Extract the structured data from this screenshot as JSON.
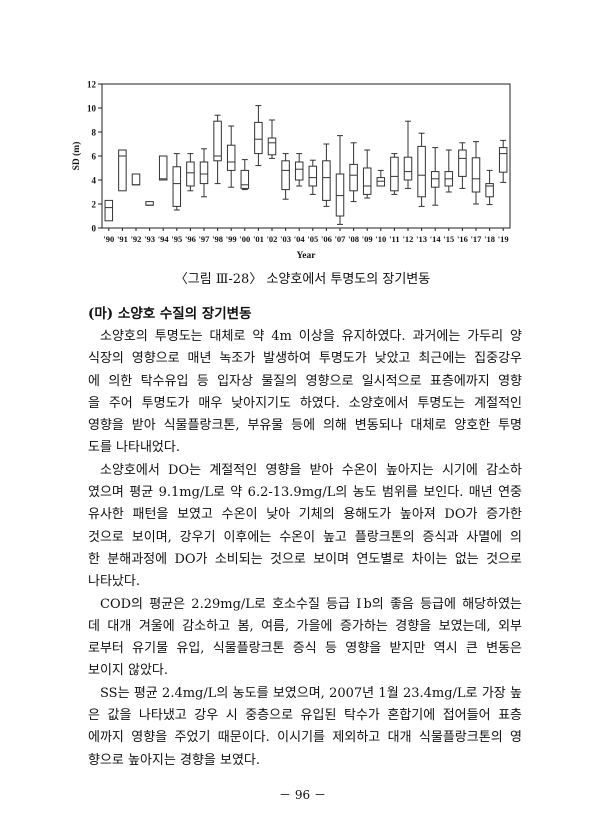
{
  "chart_data": {
    "type": "boxplot",
    "xlabel": "Year",
    "ylabel": "SD (m)",
    "ylim": [
      0,
      12
    ],
    "yticks": [
      0,
      2,
      4,
      6,
      8,
      10,
      12
    ],
    "categories": [
      "'90",
      "'91",
      "'92",
      "'93",
      "'94",
      "'95",
      "'96",
      "'97",
      "'98",
      "'99",
      "'00",
      "'01",
      "'02",
      "'03",
      "'04",
      "'05",
      "'06",
      "'07",
      "'08",
      "'09",
      "'10",
      "'11",
      "'12",
      "'13",
      "'14",
      "'15",
      "'16",
      "'17",
      "'18",
      "'19"
    ],
    "boxes": [
      {
        "min": 0.6,
        "q1": 0.6,
        "median": 1.7,
        "q3": 2.3,
        "max": 2.3
      },
      {
        "min": 3.1,
        "q1": 3.1,
        "median": 6.0,
        "q3": 6.5,
        "max": 6.5
      },
      {
        "min": 3.6,
        "q1": 3.6,
        "median": 3.6,
        "q3": 4.5,
        "max": 4.5
      },
      {
        "min": 1.9,
        "q1": 1.9,
        "median": 1.9,
        "q3": 2.2,
        "max": 2.2
      },
      {
        "min": 4.0,
        "q1": 4.0,
        "median": 4.1,
        "q3": 6.0,
        "max": 6.0
      },
      {
        "min": 1.5,
        "q1": 1.8,
        "median": 3.7,
        "q3": 5.1,
        "max": 6.2
      },
      {
        "min": 3.1,
        "q1": 3.5,
        "median": 4.6,
        "q3": 5.5,
        "max": 6.2
      },
      {
        "min": 2.6,
        "q1": 3.7,
        "median": 4.5,
        "q3": 5.5,
        "max": 6.6
      },
      {
        "min": 3.7,
        "q1": 5.6,
        "median": 6.0,
        "q3": 8.9,
        "max": 9.4
      },
      {
        "min": 3.4,
        "q1": 4.8,
        "median": 5.5,
        "q3": 6.9,
        "max": 8.5
      },
      {
        "min": 3.2,
        "q1": 3.3,
        "median": 3.6,
        "q3": 4.8,
        "max": 5.7
      },
      {
        "min": 5.2,
        "q1": 6.2,
        "median": 7.4,
        "q3": 8.8,
        "max": 10.2
      },
      {
        "min": 5.8,
        "q1": 6.1,
        "median": 7.1,
        "q3": 7.5,
        "max": 9.0
      },
      {
        "min": 2.4,
        "q1": 3.2,
        "median": 4.8,
        "q3": 5.6,
        "max": 6.2
      },
      {
        "min": 3.5,
        "q1": 4.0,
        "median": 4.9,
        "q3": 5.5,
        "max": 6.2
      },
      {
        "min": 2.8,
        "q1": 3.5,
        "median": 4.2,
        "q3": 5.15,
        "max": 5.65
      },
      {
        "min": 1.8,
        "q1": 2.3,
        "median": 4.2,
        "q3": 5.6,
        "max": 7.0
      },
      {
        "min": 0.3,
        "q1": 1.0,
        "median": 2.7,
        "q3": 4.5,
        "max": 7.7
      },
      {
        "min": 2.2,
        "q1": 3.1,
        "median": 4.4,
        "q3": 5.3,
        "max": 7.1
      },
      {
        "min": 2.5,
        "q1": 2.8,
        "median": 3.5,
        "q3": 5.0,
        "max": 6.5
      },
      {
        "min": 3.5,
        "q1": 3.5,
        "median": 3.9,
        "q3": 4.2,
        "max": 4.8
      },
      {
        "min": 2.8,
        "q1": 3.1,
        "median": 4.3,
        "q3": 5.9,
        "max": 6.2
      },
      {
        "min": 3.3,
        "q1": 4.0,
        "median": 4.7,
        "q3": 5.9,
        "max": 8.9
      },
      {
        "min": 1.8,
        "q1": 2.6,
        "median": 4.4,
        "q3": 6.8,
        "max": 7.9
      },
      {
        "min": 1.9,
        "q1": 3.4,
        "median": 4.1,
        "q3": 4.7,
        "max": 6.7
      },
      {
        "min": 3.0,
        "q1": 3.5,
        "median": 4.1,
        "q3": 4.7,
        "max": 6.5
      },
      {
        "min": 3.3,
        "q1": 4.3,
        "median": 5.8,
        "q3": 6.5,
        "max": 7.1
      },
      {
        "min": 2.0,
        "q1": 3.0,
        "median": 4.1,
        "q3": 5.85,
        "max": 7.2
      },
      {
        "min": 1.95,
        "q1": 2.6,
        "median": 3.5,
        "q3": 3.7,
        "max": 4.8
      },
      {
        "min": 3.8,
        "q1": 4.65,
        "median": 6.2,
        "q3": 6.7,
        "max": 7.3
      }
    ],
    "grid": false
  },
  "caption": "〈그림 Ⅲ-28〉 소양호에서 투명도의 장기변동",
  "heading": "(마) 소양호 수질의 장기변동",
  "paragraphs": [
    [
      "소양호의 투명도는 대체로 약 4m 이상을 유지하였다. 과거에는 가두리 양",
      "식장의 영향으로 매년 녹조가 발생하여 투명도가 낮았고 최근에는 집중강우",
      "에 의한 탁수유입 등 입자상 물질의 영향으로 일시적으로 표층에까지 영향",
      "을 주어 투명도가 매우 낮아지기도 하였다. 소양호에서 투명도는 계절적인",
      "영향을 받아 식물플랑크톤, 부유물 등에 의해 변동되나 대체로 양호한 투명",
      "도를 나타내었다."
    ],
    [
      "소양호에서 DO는 계절적인 영향을 받아 수온이 높아지는 시기에 감소하",
      "였으며 평균 9.1mg/L로 약 6.2-13.9mg/L의 농도 범위를 보인다. 매년 연중",
      "유사한 패턴을 보였고 수온이 낮아 기체의 용해도가 높아져 DO가 증가한",
      "것으로 보이며, 강우기 이후에는 수온이 높고 플랑크톤의 증식과 사멸에 의",
      "한 분해과정에 DO가 소비되는 것으로 보이며 연도별로 차이는 없는 것으로",
      "나타났다."
    ],
    [
      "COD의 평균은 2.29mg/L로 호소수질 등급 Ⅰb의 좋음 등급에 해당하였는",
      "데 대개 겨울에 감소하고 봄, 여름, 가을에 증가하는 경향을 보였는데, 외부",
      "로부터 유기물 유입, 식물플랑크톤 증식 등 영향을 받지만 역시 큰 변동은",
      "보이지 않았다."
    ],
    [
      "SS는 평균 2.4mg/L의 농도를 보였으며, 2007년 1월 23.4mg/L로 가장 높",
      "은 값을 나타냈고 강우 시 중층으로 유입된 탁수가 혼합기에 접어들어 표층",
      "에까지 영향을 주었기 때문이다. 이시기를 제외하고 대개 식물플랑크톤의 영",
      "향으로 높아지는 경향을 보였다."
    ]
  ],
  "page_number": "－ 96 －"
}
